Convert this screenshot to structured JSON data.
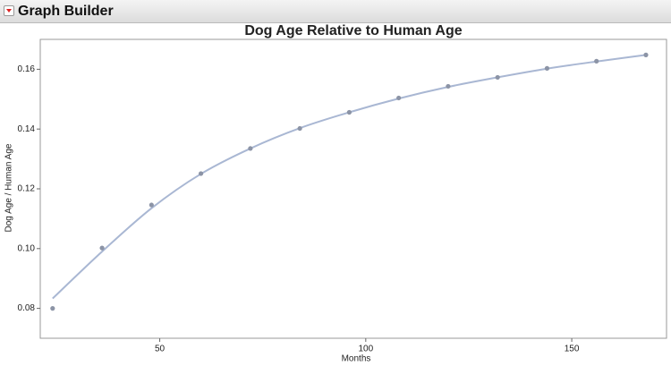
{
  "header": {
    "title": "Graph Builder"
  },
  "chart_data": {
    "type": "scatter",
    "title": "Dog Age Relative to Human Age",
    "x_label": "Months",
    "y_label": "Dog Age / Human Age",
    "x": [
      24,
      36,
      48,
      60,
      72,
      84,
      96,
      108,
      120,
      132,
      144,
      156,
      168
    ],
    "values": [
      0.08,
      0.1002,
      0.1146,
      0.1251,
      0.1335,
      0.1402,
      0.1456,
      0.1504,
      0.1543,
      0.1573,
      0.1603,
      0.1627,
      0.1648
    ],
    "fit": [
      0.0833,
      0.099,
      0.1135,
      0.125,
      0.1335,
      0.1403,
      0.1456,
      0.1502,
      0.1541,
      0.1573,
      0.1602,
      0.1626,
      0.1648
    ],
    "color": "#8c94a6",
    "fit_color": "#a9b7d3",
    "xlim": [
      21,
      173
    ],
    "xticks": [
      50,
      100,
      150
    ],
    "ylim": [
      0.07,
      0.17
    ],
    "yticks": [
      0.08,
      {
        "value": 0.1,
        "label": "0.10"
      },
      0.12,
      0.14,
      0.16
    ]
  }
}
